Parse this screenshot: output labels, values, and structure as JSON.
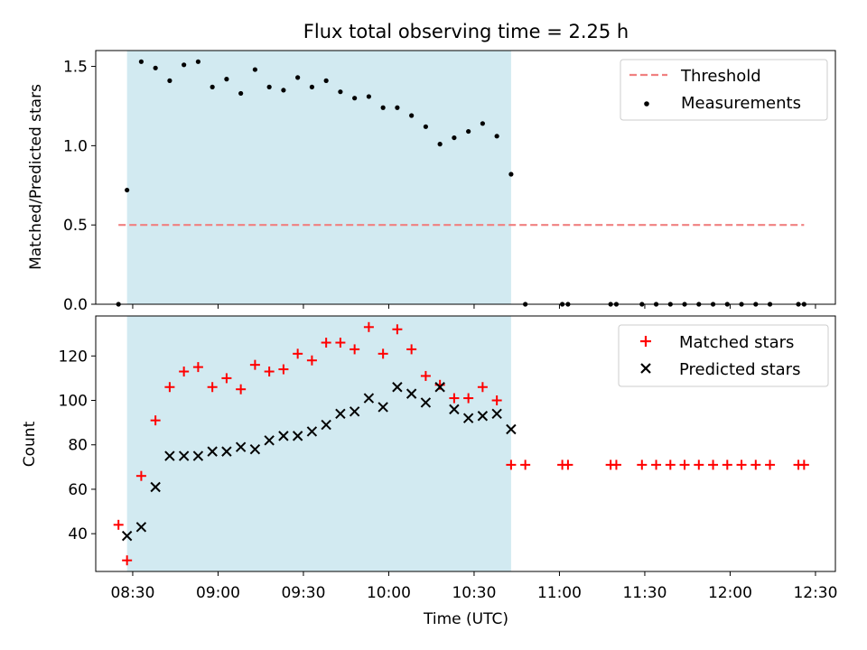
{
  "colors": {
    "shade": "#add8e6",
    "threshold": "#f08080",
    "measurement": "#000000",
    "matched": "#ff0000",
    "predicted": "#000000"
  },
  "chart_data": [
    {
      "type": "scatter",
      "title": "Flux total observing time = 2.25 h",
      "xlabel": "",
      "ylabel": "Matched/Predicted stars",
      "xlim": [
        "08:17",
        "12:37"
      ],
      "ylim": [
        0,
        1.6
      ],
      "yticks": [
        "0.0",
        "0.5",
        "1.0",
        "1.5"
      ],
      "ytick_values": [
        0,
        0.5,
        1.0,
        1.5
      ],
      "grid": false,
      "legend_placement": "top-right",
      "shaded_interval": [
        "08:28",
        "10:43"
      ],
      "threshold": {
        "name": "Threshold",
        "y": 0.5,
        "x_range": [
          "08:25",
          "12:26"
        ],
        "style": "dashed"
      },
      "series": [
        {
          "name": "Measurements",
          "marker": "dot",
          "points": [
            [
              "08:25",
              0.0
            ],
            [
              "08:28",
              0.72
            ],
            [
              "08:33",
              1.53
            ],
            [
              "08:38",
              1.49
            ],
            [
              "08:43",
              1.41
            ],
            [
              "08:48",
              1.51
            ],
            [
              "08:53",
              1.53
            ],
            [
              "08:58",
              1.37
            ],
            [
              "09:03",
              1.42
            ],
            [
              "09:08",
              1.33
            ],
            [
              "09:13",
              1.48
            ],
            [
              "09:18",
              1.37
            ],
            [
              "09:23",
              1.35
            ],
            [
              "09:28",
              1.43
            ],
            [
              "09:33",
              1.37
            ],
            [
              "09:38",
              1.41
            ],
            [
              "09:43",
              1.34
            ],
            [
              "09:48",
              1.3
            ],
            [
              "09:53",
              1.31
            ],
            [
              "09:58",
              1.24
            ],
            [
              "10:03",
              1.24
            ],
            [
              "10:08",
              1.19
            ],
            [
              "10:13",
              1.12
            ],
            [
              "10:18",
              1.01
            ],
            [
              "10:23",
              1.05
            ],
            [
              "10:28",
              1.09
            ],
            [
              "10:33",
              1.14
            ],
            [
              "10:38",
              1.06
            ],
            [
              "10:43",
              0.82
            ],
            [
              "10:48",
              0.0
            ],
            [
              "11:01",
              0.0
            ],
            [
              "11:03",
              0.0
            ],
            [
              "11:18",
              0.0
            ],
            [
              "11:20",
              0.0
            ],
            [
              "11:29",
              0.0
            ],
            [
              "11:34",
              0.0
            ],
            [
              "11:39",
              0.0
            ],
            [
              "11:44",
              0.0
            ],
            [
              "11:49",
              0.0
            ],
            [
              "11:54",
              0.0
            ],
            [
              "11:59",
              0.0
            ],
            [
              "12:04",
              0.0
            ],
            [
              "12:09",
              0.0
            ],
            [
              "12:14",
              0.0
            ],
            [
              "12:24",
              0.0
            ],
            [
              "12:26",
              0.0
            ]
          ]
        }
      ]
    },
    {
      "type": "scatter",
      "title": "",
      "xlabel": "Time (UTC)",
      "ylabel": "Count",
      "xlim": [
        "08:17",
        "12:37"
      ],
      "ylim": [
        23,
        138
      ],
      "yticks": [
        "40",
        "60",
        "80",
        "100",
        "120"
      ],
      "ytick_values": [
        40,
        60,
        80,
        100,
        120
      ],
      "xticks": [
        "08:30",
        "09:00",
        "09:30",
        "10:00",
        "10:30",
        "11:00",
        "11:30",
        "12:00",
        "12:30"
      ],
      "grid": false,
      "legend_placement": "top-right",
      "shaded_interval": [
        "08:28",
        "10:43"
      ],
      "series": [
        {
          "name": "Matched stars",
          "marker": "plus",
          "points": [
            [
              "08:25",
              44
            ],
            [
              "08:28",
              28
            ],
            [
              "08:33",
              66
            ],
            [
              "08:38",
              91
            ],
            [
              "08:43",
              106
            ],
            [
              "08:48",
              113
            ],
            [
              "08:53",
              115
            ],
            [
              "08:58",
              106
            ],
            [
              "09:03",
              110
            ],
            [
              "09:08",
              105
            ],
            [
              "09:13",
              116
            ],
            [
              "09:18",
              113
            ],
            [
              "09:23",
              114
            ],
            [
              "09:28",
              121
            ],
            [
              "09:33",
              118
            ],
            [
              "09:38",
              126
            ],
            [
              "09:43",
              126
            ],
            [
              "09:48",
              123
            ],
            [
              "09:53",
              133
            ],
            [
              "09:58",
              121
            ],
            [
              "10:03",
              132
            ],
            [
              "10:08",
              123
            ],
            [
              "10:13",
              111
            ],
            [
              "10:18",
              107
            ],
            [
              "10:23",
              101
            ],
            [
              "10:28",
              101
            ],
            [
              "10:33",
              106
            ],
            [
              "10:38",
              100
            ],
            [
              "10:43",
              71
            ],
            [
              "10:48",
              71
            ],
            [
              "11:01",
              71
            ],
            [
              "11:03",
              71
            ],
            [
              "11:18",
              71
            ],
            [
              "11:20",
              71
            ],
            [
              "11:29",
              71
            ],
            [
              "11:34",
              71
            ],
            [
              "11:39",
              71
            ],
            [
              "11:44",
              71
            ],
            [
              "11:49",
              71
            ],
            [
              "11:54",
              71
            ],
            [
              "11:59",
              71
            ],
            [
              "12:04",
              71
            ],
            [
              "12:09",
              71
            ],
            [
              "12:14",
              71
            ],
            [
              "12:24",
              71
            ],
            [
              "12:26",
              71
            ]
          ]
        },
        {
          "name": "Predicted stars",
          "marker": "x",
          "points": [
            [
              "08:28",
              39
            ],
            [
              "08:33",
              43
            ],
            [
              "08:38",
              61
            ],
            [
              "08:43",
              75
            ],
            [
              "08:48",
              75
            ],
            [
              "08:53",
              75
            ],
            [
              "08:58",
              77
            ],
            [
              "09:03",
              77
            ],
            [
              "09:08",
              79
            ],
            [
              "09:13",
              78
            ],
            [
              "09:18",
              82
            ],
            [
              "09:23",
              84
            ],
            [
              "09:28",
              84
            ],
            [
              "09:33",
              86
            ],
            [
              "09:38",
              89
            ],
            [
              "09:43",
              94
            ],
            [
              "09:48",
              95
            ],
            [
              "09:53",
              101
            ],
            [
              "09:58",
              97
            ],
            [
              "10:03",
              106
            ],
            [
              "10:08",
              103
            ],
            [
              "10:13",
              99
            ],
            [
              "10:18",
              106
            ],
            [
              "10:23",
              96
            ],
            [
              "10:28",
              92
            ],
            [
              "10:33",
              93
            ],
            [
              "10:38",
              94
            ],
            [
              "10:43",
              87
            ]
          ]
        }
      ]
    }
  ]
}
